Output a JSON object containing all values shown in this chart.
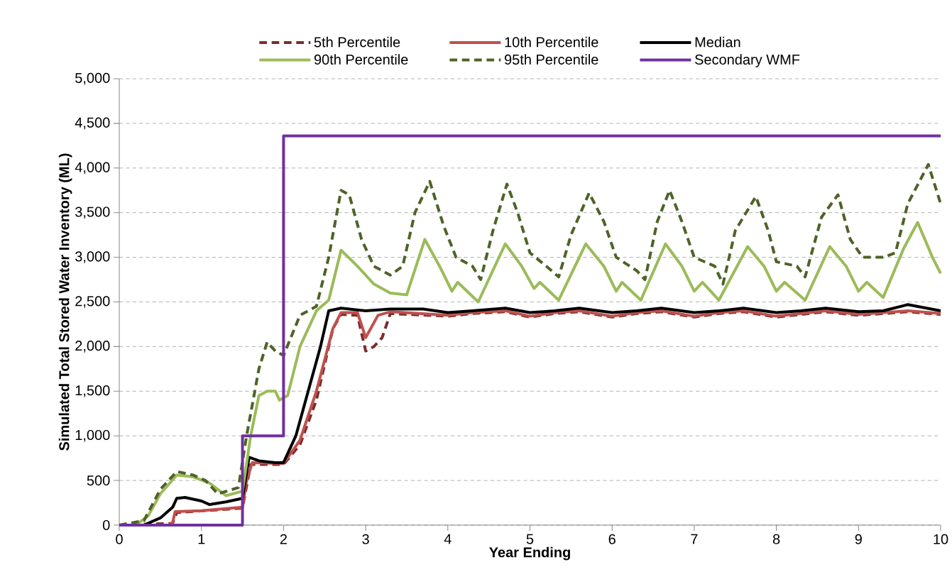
{
  "chart_data": {
    "type": "line",
    "xlabel": "Year Ending",
    "ylabel": "Simulated  Total Stored Water Inventory  (ML)",
    "xlim": [
      0,
      10
    ],
    "xticks": [
      0,
      1,
      2,
      3,
      4,
      5,
      6,
      7,
      8,
      9,
      10
    ],
    "ylim": [
      0,
      5000
    ],
    "yticks": [
      0,
      500,
      {
        "value": 1000,
        "label": "1,000"
      },
      {
        "value": 1500,
        "label": "1,500"
      },
      {
        "value": 2000,
        "label": "2,000"
      },
      {
        "value": 2500,
        "label": "2,500"
      },
      {
        "value": 3000,
        "label": "3,000"
      },
      {
        "value": 3500,
        "label": "3,500"
      },
      {
        "value": 4000,
        "label": "4,000"
      },
      {
        "value": 4500,
        "label": "4,500"
      },
      {
        "value": 5000,
        "label": "5,000"
      }
    ],
    "grid": "y",
    "legend": "top",
    "marker": "none",
    "series": [
      {
        "name": "5th Percentile",
        "color": "#7b2c2c",
        "line_style": "dashed",
        "x": [
          0,
          0.65,
          0.7,
          1.5,
          1.6,
          2.0,
          2.2,
          2.4,
          2.6,
          2.7,
          2.9,
          3.0,
          3.1,
          3.2,
          3.3,
          4.0,
          4.3,
          4.7,
          5.0,
          5.3,
          5.6,
          6.0,
          6.3,
          6.6,
          7.0,
          7.3,
          7.6,
          8.0,
          8.3,
          8.6,
          9.0,
          9.6,
          10
        ],
        "values": [
          0,
          20,
          140,
          190,
          680,
          680,
          900,
          1400,
          2200,
          2360,
          2350,
          1950,
          2000,
          2100,
          2370,
          2340,
          2370,
          2390,
          2330,
          2370,
          2390,
          2330,
          2370,
          2390,
          2330,
          2370,
          2390,
          2330,
          2360,
          2390,
          2350,
          2390,
          2360
        ]
      },
      {
        "name": "10th Percentile",
        "color": "#c0504d",
        "line_style": "solid",
        "x": [
          0,
          0.6,
          0.65,
          0.68,
          1.0,
          1.5,
          1.55,
          1.62,
          2.0,
          2.2,
          2.4,
          2.6,
          2.7,
          2.9,
          3.0,
          3.15,
          3.3,
          4.0,
          4.3,
          4.7,
          5.0,
          5.3,
          5.6,
          6.0,
          6.3,
          6.6,
          7.0,
          7.3,
          7.6,
          8.0,
          8.3,
          8.6,
          9.0,
          9.6,
          10
        ],
        "values": [
          0,
          0,
          30,
          150,
          160,
          200,
          500,
          700,
          690,
          950,
          1500,
          2200,
          2380,
          2380,
          2100,
          2350,
          2390,
          2350,
          2380,
          2400,
          2340,
          2380,
          2400,
          2340,
          2380,
          2400,
          2340,
          2380,
          2400,
          2340,
          2370,
          2400,
          2360,
          2400,
          2370
        ]
      },
      {
        "name": "Median",
        "color": "#000000",
        "line_style": "solid",
        "x": [
          0,
          0.3,
          0.5,
          0.65,
          0.7,
          0.8,
          1.0,
          1.1,
          1.3,
          1.5,
          1.58,
          1.7,
          1.9,
          2.0,
          2.15,
          2.3,
          2.45,
          2.55,
          2.7,
          3.0,
          3.3,
          3.7,
          4.0,
          4.3,
          4.7,
          5.0,
          5.3,
          5.6,
          6.0,
          6.3,
          6.6,
          7.0,
          7.3,
          7.6,
          8.0,
          8.3,
          8.6,
          9.0,
          9.3,
          9.6,
          10
        ],
        "values": [
          0,
          0,
          80,
          200,
          300,
          310,
          270,
          230,
          260,
          300,
          760,
          720,
          700,
          700,
          1000,
          1500,
          2000,
          2400,
          2430,
          2400,
          2420,
          2420,
          2380,
          2400,
          2430,
          2380,
          2400,
          2430,
          2380,
          2400,
          2430,
          2380,
          2400,
          2430,
          2380,
          2400,
          2430,
          2390,
          2400,
          2470,
          2400
        ]
      },
      {
        "name": "90th Percentile",
        "color": "#9bbb59",
        "line_style": "solid",
        "x": [
          0,
          0.2,
          0.35,
          0.5,
          0.7,
          0.9,
          1.1,
          1.3,
          1.5,
          1.6,
          1.7,
          1.8,
          1.9,
          1.95,
          2.05,
          2.2,
          2.4,
          2.55,
          2.7,
          2.9,
          3.1,
          3.3,
          3.5,
          3.72,
          3.9,
          4.05,
          4.12,
          4.37,
          4.7,
          4.9,
          5.05,
          5.12,
          5.35,
          5.68,
          5.9,
          6.05,
          6.12,
          6.35,
          6.65,
          6.85,
          7.0,
          7.1,
          7.3,
          7.65,
          7.85,
          8.0,
          8.1,
          8.35,
          8.65,
          8.85,
          9.0,
          9.1,
          9.3,
          9.55,
          9.72,
          9.9,
          10
        ],
        "values": [
          0,
          0,
          100,
          350,
          560,
          540,
          470,
          330,
          380,
          1000,
          1450,
          1500,
          1500,
          1400,
          1450,
          2000,
          2400,
          2520,
          3080,
          2900,
          2700,
          2600,
          2580,
          3200,
          2900,
          2620,
          2720,
          2500,
          3150,
          2900,
          2650,
          2720,
          2520,
          3150,
          2900,
          2620,
          2720,
          2520,
          3150,
          2900,
          2620,
          2720,
          2520,
          3120,
          2900,
          2620,
          2720,
          2520,
          3120,
          2900,
          2620,
          2720,
          2550,
          3100,
          3390,
          3000,
          2820
        ]
      },
      {
        "name": "95th Percentile",
        "color": "#4f6228",
        "line_style": "dashed",
        "x": [
          0,
          0.3,
          0.5,
          0.7,
          0.9,
          1.05,
          1.2,
          1.45,
          1.55,
          1.7,
          1.8,
          1.9,
          2.0,
          2.2,
          2.4,
          2.55,
          2.7,
          2.8,
          2.95,
          3.1,
          3.3,
          3.45,
          3.6,
          3.78,
          3.95,
          4.1,
          4.3,
          4.4,
          4.55,
          4.72,
          4.85,
          5.0,
          5.2,
          5.35,
          5.5,
          5.72,
          5.9,
          6.05,
          6.3,
          6.4,
          6.55,
          6.7,
          6.85,
          7.0,
          7.25,
          7.35,
          7.5,
          7.75,
          7.9,
          8.0,
          8.25,
          8.35,
          8.55,
          8.75,
          8.9,
          9.05,
          9.3,
          9.45,
          9.6,
          9.85,
          10
        ],
        "values": [
          0,
          50,
          400,
          600,
          560,
          500,
          350,
          420,
          1000,
          1750,
          2050,
          1950,
          1900,
          2350,
          2450,
          3000,
          3750,
          3700,
          3200,
          2900,
          2800,
          2900,
          3500,
          3850,
          3350,
          3000,
          2900,
          2750,
          3300,
          3820,
          3500,
          3050,
          2900,
          2780,
          3250,
          3720,
          3400,
          3000,
          2850,
          2750,
          3400,
          3750,
          3400,
          3000,
          2900,
          2700,
          3300,
          3680,
          3300,
          2950,
          2900,
          2780,
          3450,
          3700,
          3200,
          3000,
          3000,
          3050,
          3600,
          4040,
          3600
        ]
      },
      {
        "name": "Secondary WMF",
        "color": "#7030a0",
        "line_style": "solid",
        "x": [
          0,
          1.5,
          1.5,
          2,
          2,
          10
        ],
        "values": [
          0,
          0,
          1000,
          1000,
          4360,
          4360
        ]
      }
    ]
  }
}
